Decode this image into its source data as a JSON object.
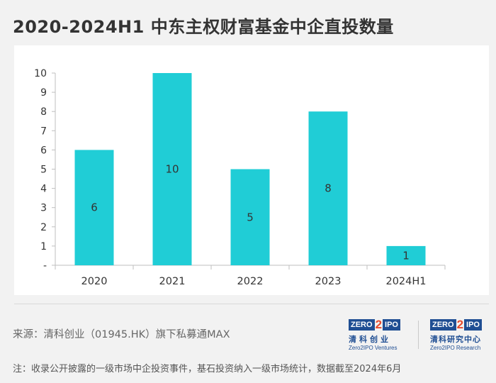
{
  "title": "2020-2024H1 中东主权财富基金中企直投数量",
  "chart_data": {
    "type": "bar",
    "title": "2020-2024H1 中东主权财富基金中企直投数量",
    "categories": [
      "2020",
      "2021",
      "2022",
      "2023",
      "2024H1"
    ],
    "values": [
      6,
      10,
      5,
      8,
      1
    ],
    "data_labels": [
      "6",
      "10",
      "5",
      "8",
      "1"
    ],
    "ylim": [
      0,
      10
    ],
    "yticks": [
      "-",
      "1",
      "2",
      "3",
      "4",
      "5",
      "6",
      "7",
      "8",
      "9",
      "10"
    ],
    "xlabel": "",
    "ylabel": "",
    "grid": false,
    "bar_color": "#20cdd6"
  },
  "source": "来源：清科创业（01945.HK）旗下私募通MAX",
  "note": "注：收录公开披露的一级市场中企投资事件，基石投资纳入一级市场统计，数据截至2024年6月",
  "logos": {
    "left": {
      "box_left": "ZERO",
      "two": "2",
      "box_right": "IPO",
      "cn": "清科创业",
      "en": "Zero2IPO Ventures"
    },
    "right": {
      "box_left": "ZERO",
      "two": "2",
      "box_right": "IPO",
      "cn": "清科研究中心",
      "en": "Zero2IPO Research"
    }
  }
}
